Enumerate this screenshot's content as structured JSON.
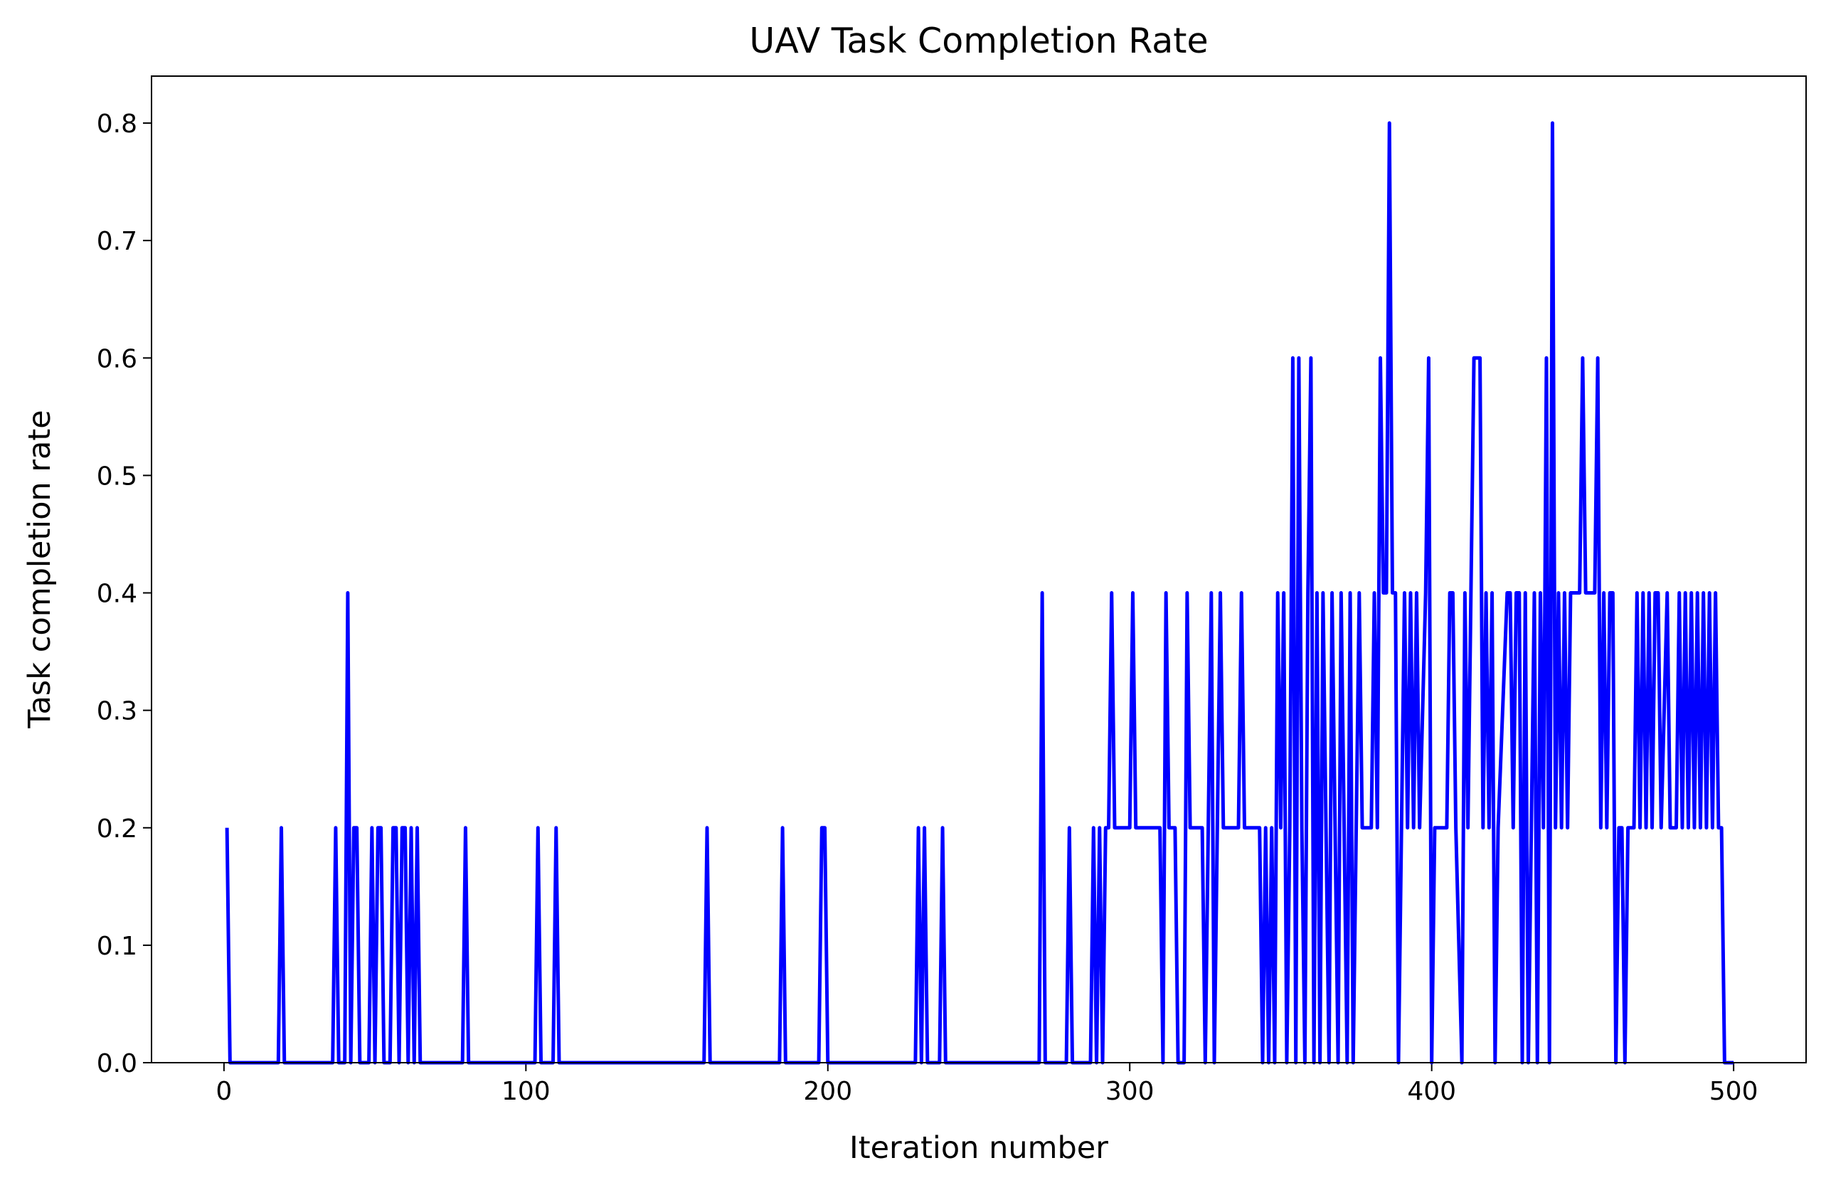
{
  "chart_data": {
    "type": "line",
    "title": "UAV Task Completion Rate",
    "xlabel": "Iteration number",
    "ylabel": "Task completion rate",
    "xlim": [
      -24,
      524
    ],
    "xticks": [
      0,
      100,
      200,
      300,
      400,
      500
    ],
    "ylim": [
      0,
      0.84
    ],
    "yticks": [
      {
        "value": 0,
        "label": "0.0"
      },
      0.1,
      0.2,
      0.3,
      0.4,
      0.5,
      0.6,
      0.7,
      0.8
    ],
    "series": [
      {
        "color": "#0000ff",
        "x": [
          1,
          2,
          18,
          19,
          20,
          36,
          37,
          38,
          40,
          41,
          42,
          43,
          44,
          45,
          48,
          49,
          50,
          51,
          52,
          53,
          55,
          56,
          57,
          58,
          59,
          60,
          61,
          62,
          63,
          64,
          65,
          79,
          80,
          81,
          103,
          104,
          105,
          109,
          110,
          111,
          159,
          160,
          161,
          184,
          185,
          186,
          197,
          198,
          199,
          200,
          229,
          230,
          231,
          232,
          233,
          237,
          238,
          239,
          270,
          271,
          272,
          279,
          280,
          281,
          287,
          288,
          289,
          290,
          291,
          292,
          293,
          294,
          295,
          300,
          301,
          302,
          310,
          311,
          312,
          313,
          315,
          316,
          318,
          319,
          320,
          324,
          325,
          326,
          327,
          328,
          329,
          330,
          331,
          336,
          337,
          338,
          343,
          344,
          345,
          346,
          347,
          348,
          349,
          350,
          351,
          352,
          353,
          354,
          355,
          356,
          357,
          358,
          359,
          360,
          361,
          362,
          363,
          364,
          365,
          366,
          367,
          368,
          369,
          370,
          371,
          372,
          373,
          374,
          375,
          376,
          377,
          380,
          381,
          382,
          383,
          384,
          385,
          386,
          387,
          388,
          389,
          390,
          391,
          392,
          393,
          394,
          395,
          396,
          398,
          399,
          400,
          401,
          405,
          406,
          407,
          408,
          410,
          411,
          412,
          414,
          415,
          416,
          417,
          418,
          419,
          420,
          421,
          422,
          425,
          426,
          427,
          428,
          429,
          430,
          431,
          432,
          433,
          434,
          435,
          436,
          437,
          438,
          439,
          440,
          441,
          442,
          443,
          444,
          445,
          446,
          449,
          450,
          451,
          454,
          455,
          456,
          457,
          458,
          459,
          460,
          461,
          462,
          463,
          464,
          465,
          467,
          468,
          469,
          470,
          471,
          472,
          473,
          474,
          475,
          476,
          478,
          479,
          481,
          482,
          483,
          484,
          485,
          486,
          487,
          488,
          489,
          490,
          491,
          492,
          493,
          494,
          495,
          496,
          497,
          500
        ],
        "values": [
          0.2,
          0,
          0,
          0.2,
          0,
          0,
          0.2,
          0,
          0,
          0.4,
          0,
          0.2,
          0.2,
          0,
          0,
          0.2,
          0,
          0.2,
          0.2,
          0,
          0,
          0.2,
          0.2,
          0,
          0.2,
          0.2,
          0,
          0.2,
          0,
          0.2,
          0,
          0,
          0.2,
          0,
          0,
          0.2,
          0,
          0,
          0.2,
          0,
          0,
          0.2,
          0,
          0,
          0.2,
          0,
          0,
          0.2,
          0.2,
          0,
          0,
          0.2,
          0,
          0.2,
          0,
          0,
          0.2,
          0,
          0,
          0.4,
          0,
          0,
          0.2,
          0,
          0,
          0.2,
          0,
          0.2,
          0,
          0.2,
          0.2,
          0.4,
          0.2,
          0.2,
          0.4,
          0.2,
          0.2,
          0,
          0.4,
          0.2,
          0.2,
          0,
          0,
          0.4,
          0.2,
          0.2,
          0,
          0.2,
          0.4,
          0,
          0.2,
          0.4,
          0.2,
          0.2,
          0.4,
          0.2,
          0.2,
          0,
          0.2,
          0,
          0.2,
          0,
          0.4,
          0.2,
          0.4,
          0,
          0.2,
          0.6,
          0,
          0.6,
          0.2,
          0,
          0.4,
          0.6,
          0,
          0.4,
          0,
          0.4,
          0.2,
          0,
          0.4,
          0.2,
          0,
          0.4,
          0.2,
          0,
          0.4,
          0,
          0.2,
          0.4,
          0.2,
          0.2,
          0.4,
          0.2,
          0.6,
          0.4,
          0.4,
          0.8,
          0.4,
          0.4,
          0,
          0.2,
          0.4,
          0.2,
          0.4,
          0.2,
          0.4,
          0.2,
          0.4,
          0.6,
          0,
          0.2,
          0.2,
          0.4,
          0.4,
          0.2,
          0,
          0.4,
          0.2,
          0.6,
          0.6,
          0.6,
          0.2,
          0.4,
          0.2,
          0.4,
          0,
          0.2,
          0.4,
          0.4,
          0.2,
          0.4,
          0.4,
          0,
          0.4,
          0,
          0.2,
          0.4,
          0,
          0.4,
          0.2,
          0.6,
          0,
          0.8,
          0.2,
          0.4,
          0.2,
          0.4,
          0.2,
          0.4,
          0.4,
          0.6,
          0.4,
          0.4,
          0.6,
          0.2,
          0.4,
          0.2,
          0.4,
          0.4,
          0,
          0.2,
          0.2,
          0,
          0.2,
          0.2,
          0.4,
          0.2,
          0.4,
          0.2,
          0.4,
          0.2,
          0.4,
          0.4,
          0.2,
          0.4,
          0.2,
          0.2,
          0.4,
          0.2,
          0.4,
          0.2,
          0.4,
          0.2,
          0.4,
          0.2,
          0.4,
          0.2,
          0.4,
          0.2,
          0.4,
          0.2,
          0.2,
          0,
          0
        ]
      }
    ]
  }
}
